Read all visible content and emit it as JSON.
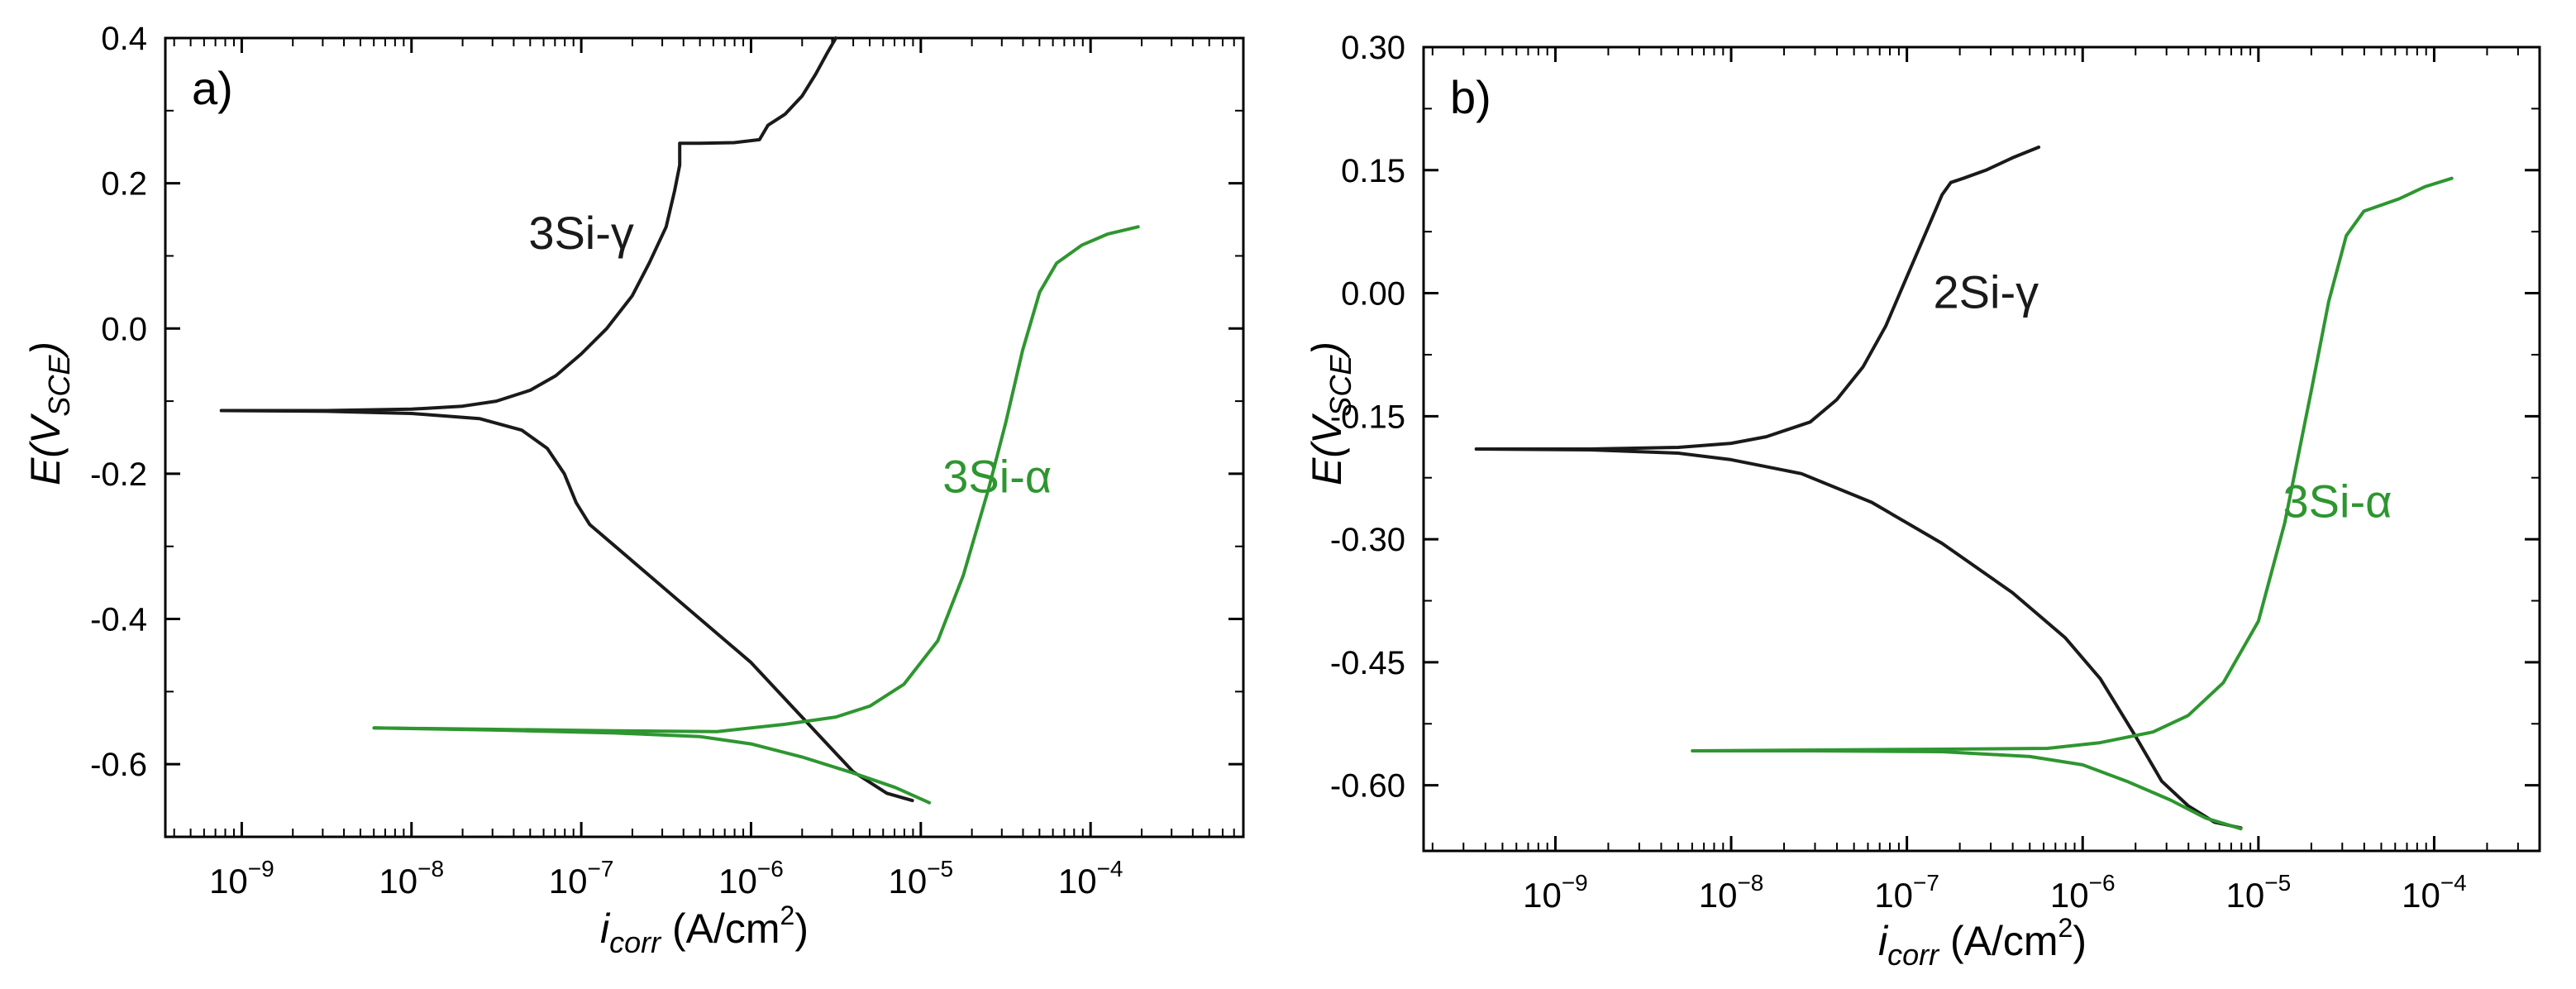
{
  "figure": {
    "background": "#ffffff"
  },
  "chart_data": [
    {
      "type": "line",
      "panel_label": "a)",
      "x_scale": "log",
      "xlim": [
        -9.45,
        -3.1
      ],
      "ylim": [
        -0.7,
        0.4
      ],
      "x_ticks": [
        {
          "exp": -9,
          "base": "10",
          "sup": "−9"
        },
        {
          "exp": -8,
          "base": "10",
          "sup": "−8"
        },
        {
          "exp": -7,
          "base": "10",
          "sup": "−7"
        },
        {
          "exp": -6,
          "base": "10",
          "sup": "−6"
        },
        {
          "exp": -5,
          "base": "10",
          "sup": "−5"
        },
        {
          "exp": -4,
          "base": "10",
          "sup": "−4"
        }
      ],
      "y_ticks": [
        {
          "value": 0.4,
          "label": "0.4"
        },
        {
          "value": 0.2,
          "label": "0.2"
        },
        {
          "value": 0.0,
          "label": "0.0"
        },
        {
          "value": -0.2,
          "label": "-0.2"
        },
        {
          "value": -0.4,
          "label": "-0.4"
        },
        {
          "value": -0.6,
          "label": "-0.6"
        }
      ],
      "x_label": {
        "main": "i",
        "sub": "corr",
        "unit": " (A/cm",
        "sup": "2",
        "close": ")"
      },
      "y_label": {
        "main": "E(V",
        "sub": "SCE",
        "close": ")"
      },
      "series": [
        {
          "name": "3Si-γ",
          "color": "#1a1a1a",
          "label_pos": [
            -7.0,
            0.13
          ],
          "segments": [
            {
              "part": "anodic",
              "points": [
                [
                  -9.12,
                  -0.113
                ],
                [
                  -8.5,
                  -0.113
                ],
                [
                  -8.0,
                  -0.111
                ],
                [
                  -7.7,
                  -0.107
                ],
                [
                  -7.5,
                  -0.1
                ],
                [
                  -7.3,
                  -0.085
                ],
                [
                  -7.15,
                  -0.065
                ],
                [
                  -7.0,
                  -0.035
                ],
                [
                  -6.85,
                  0.0
                ],
                [
                  -6.7,
                  0.045
                ],
                [
                  -6.6,
                  0.09
                ],
                [
                  -6.5,
                  0.14
                ],
                [
                  -6.45,
                  0.19
                ],
                [
                  -6.42,
                  0.225
                ],
                [
                  -6.42,
                  0.255
                ],
                [
                  -6.3,
                  0.255
                ],
                [
                  -6.1,
                  0.256
                ],
                [
                  -5.95,
                  0.26
                ],
                [
                  -5.9,
                  0.28
                ],
                [
                  -5.8,
                  0.295
                ],
                [
                  -5.7,
                  0.32
                ],
                [
                  -5.62,
                  0.35
                ],
                [
                  -5.55,
                  0.38
                ],
                [
                  -5.5,
                  0.4
                ]
              ]
            },
            {
              "part": "cathodic",
              "points": [
                [
                  -9.12,
                  -0.113
                ],
                [
                  -8.5,
                  -0.114
                ],
                [
                  -8.0,
                  -0.117
                ],
                [
                  -7.6,
                  -0.124
                ],
                [
                  -7.35,
                  -0.14
                ],
                [
                  -7.2,
                  -0.165
                ],
                [
                  -7.1,
                  -0.2
                ],
                [
                  -7.03,
                  -0.24
                ],
                [
                  -6.95,
                  -0.27
                ],
                [
                  -6.8,
                  -0.3
                ],
                [
                  -6.6,
                  -0.34
                ],
                [
                  -6.4,
                  -0.38
                ],
                [
                  -6.2,
                  -0.42
                ],
                [
                  -6.0,
                  -0.46
                ],
                [
                  -5.8,
                  -0.51
                ],
                [
                  -5.6,
                  -0.56
                ],
                [
                  -5.4,
                  -0.61
                ],
                [
                  -5.2,
                  -0.64
                ],
                [
                  -5.05,
                  -0.65
                ]
              ]
            }
          ]
        },
        {
          "name": "3Si-α",
          "color": "#2e9630",
          "label_pos": [
            -4.55,
            -0.205
          ],
          "segments": [
            {
              "part": "anodic",
              "points": [
                [
                  -8.22,
                  -0.55
                ],
                [
                  -7.5,
                  -0.552
                ],
                [
                  -6.8,
                  -0.554
                ],
                [
                  -6.2,
                  -0.555
                ],
                [
                  -5.8,
                  -0.545
                ],
                [
                  -5.5,
                  -0.535
                ],
                [
                  -5.3,
                  -0.52
                ],
                [
                  -5.1,
                  -0.49
                ],
                [
                  -4.9,
                  -0.43
                ],
                [
                  -4.75,
                  -0.34
                ],
                [
                  -4.6,
                  -0.22
                ],
                [
                  -4.5,
                  -0.13
                ],
                [
                  -4.4,
                  -0.03
                ],
                [
                  -4.3,
                  0.05
                ],
                [
                  -4.2,
                  0.09
                ],
                [
                  -4.05,
                  0.115
                ],
                [
                  -3.9,
                  0.13
                ],
                [
                  -3.72,
                  0.14
                ]
              ]
            },
            {
              "part": "cathodic",
              "points": [
                [
                  -8.22,
                  -0.55
                ],
                [
                  -7.5,
                  -0.553
                ],
                [
                  -6.8,
                  -0.557
                ],
                [
                  -6.3,
                  -0.562
                ],
                [
                  -6.0,
                  -0.572
                ],
                [
                  -5.7,
                  -0.59
                ],
                [
                  -5.4,
                  -0.612
                ],
                [
                  -5.15,
                  -0.632
                ],
                [
                  -4.95,
                  -0.653
                ]
              ]
            }
          ]
        }
      ]
    },
    {
      "type": "line",
      "panel_label": "b)",
      "x_scale": "log",
      "xlim": [
        -9.75,
        -3.4
      ],
      "ylim": [
        -0.68,
        0.3
      ],
      "x_ticks": [
        {
          "exp": -9,
          "base": "10",
          "sup": "−9"
        },
        {
          "exp": -8,
          "base": "10",
          "sup": "−8"
        },
        {
          "exp": -7,
          "base": "10",
          "sup": "−7"
        },
        {
          "exp": -6,
          "base": "10",
          "sup": "−6"
        },
        {
          "exp": -5,
          "base": "10",
          "sup": "−5"
        },
        {
          "exp": -4,
          "base": "10",
          "sup": "−4"
        }
      ],
      "y_ticks": [
        {
          "value": 0.3,
          "label": "0.30"
        },
        {
          "value": 0.15,
          "label": "0.15"
        },
        {
          "value": 0.0,
          "label": "0.00"
        },
        {
          "value": -0.15,
          "label": "-0.15"
        },
        {
          "value": -0.3,
          "label": "-0.30"
        },
        {
          "value": -0.45,
          "label": "-0.45"
        },
        {
          "value": -0.6,
          "label": "-0.60"
        }
      ],
      "x_label": {
        "main": "i",
        "sub": "corr",
        "unit": " (A/cm",
        "sup": "2",
        "close": ")"
      },
      "y_label": {
        "main": "E(V",
        "sub": "SCE",
        "close": ")"
      },
      "series": [
        {
          "name": "2Si-γ",
          "color": "#1a1a1a",
          "label_pos": [
            -6.55,
            0.0
          ],
          "segments": [
            {
              "part": "anodic",
              "points": [
                [
                  -9.45,
                  -0.19
                ],
                [
                  -8.8,
                  -0.19
                ],
                [
                  -8.3,
                  -0.188
                ],
                [
                  -8.0,
                  -0.183
                ],
                [
                  -7.8,
                  -0.175
                ],
                [
                  -7.55,
                  -0.157
                ],
                [
                  -7.4,
                  -0.13
                ],
                [
                  -7.25,
                  -0.09
                ],
                [
                  -7.12,
                  -0.04
                ],
                [
                  -7.0,
                  0.02
                ],
                [
                  -6.88,
                  0.08
                ],
                [
                  -6.8,
                  0.12
                ],
                [
                  -6.75,
                  0.135
                ],
                [
                  -6.68,
                  0.14
                ],
                [
                  -6.55,
                  0.15
                ],
                [
                  -6.4,
                  0.165
                ],
                [
                  -6.25,
                  0.178
                ]
              ]
            },
            {
              "part": "cathodic",
              "points": [
                [
                  -9.45,
                  -0.19
                ],
                [
                  -8.8,
                  -0.191
                ],
                [
                  -8.3,
                  -0.195
                ],
                [
                  -8.0,
                  -0.203
                ],
                [
                  -7.6,
                  -0.22
                ],
                [
                  -7.2,
                  -0.255
                ],
                [
                  -6.8,
                  -0.305
                ],
                [
                  -6.4,
                  -0.365
                ],
                [
                  -6.1,
                  -0.42
                ],
                [
                  -5.9,
                  -0.47
                ],
                [
                  -5.7,
                  -0.54
                ],
                [
                  -5.55,
                  -0.595
                ],
                [
                  -5.4,
                  -0.625
                ],
                [
                  -5.25,
                  -0.645
                ],
                [
                  -5.1,
                  -0.652
                ]
              ]
            }
          ]
        },
        {
          "name": "3Si-α",
          "color": "#2e9630",
          "label_pos": [
            -4.55,
            -0.255
          ],
          "segments": [
            {
              "part": "anodic",
              "points": [
                [
                  -8.22,
                  -0.558
                ],
                [
                  -7.5,
                  -0.557
                ],
                [
                  -6.8,
                  -0.556
                ],
                [
                  -6.2,
                  -0.555
                ],
                [
                  -5.9,
                  -0.548
                ],
                [
                  -5.6,
                  -0.535
                ],
                [
                  -5.4,
                  -0.515
                ],
                [
                  -5.2,
                  -0.475
                ],
                [
                  -5.0,
                  -0.4
                ],
                [
                  -4.85,
                  -0.28
                ],
                [
                  -4.7,
                  -0.12
                ],
                [
                  -4.6,
                  -0.01
                ],
                [
                  -4.5,
                  0.07
                ],
                [
                  -4.4,
                  0.1
                ],
                [
                  -4.2,
                  0.115
                ],
                [
                  -4.05,
                  0.13
                ],
                [
                  -3.9,
                  0.14
                ]
              ]
            },
            {
              "part": "cathodic",
              "points": [
                [
                  -8.22,
                  -0.558
                ],
                [
                  -7.5,
                  -0.558
                ],
                [
                  -6.8,
                  -0.559
                ],
                [
                  -6.3,
                  -0.565
                ],
                [
                  -6.0,
                  -0.575
                ],
                [
                  -5.75,
                  -0.595
                ],
                [
                  -5.5,
                  -0.618
                ],
                [
                  -5.3,
                  -0.64
                ],
                [
                  -5.1,
                  -0.653
                ]
              ]
            }
          ]
        }
      ]
    }
  ]
}
